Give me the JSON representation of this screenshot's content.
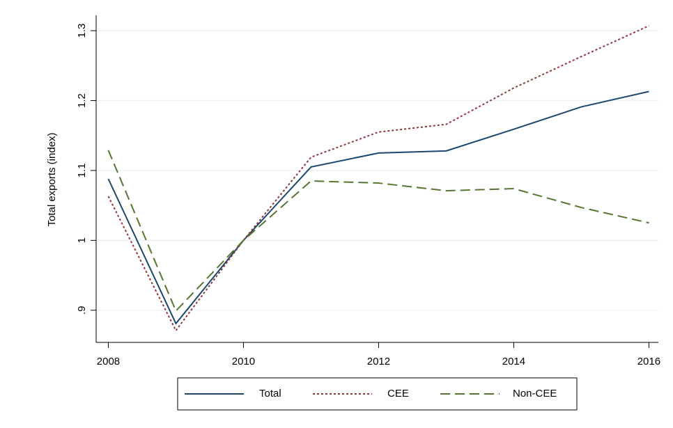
{
  "chart_data": {
    "type": "line",
    "y_label": "Total exports (index)",
    "x": [
      2008,
      2009,
      2010,
      2011,
      2012,
      2013,
      2014,
      2015,
      2016
    ],
    "series": [
      {
        "name": "Total",
        "color": "#1a476f",
        "dash": "none",
        "values": [
          1.088,
          0.881,
          1.0,
          1.105,
          1.125,
          1.128,
          1.159,
          1.191,
          1.213
        ]
      },
      {
        "name": "CEE",
        "color": "#90353b",
        "dash": "3,3",
        "values": [
          1.063,
          0.871,
          1.0,
          1.119,
          1.155,
          1.166,
          1.218,
          1.263,
          1.307
        ]
      },
      {
        "name": "Non-CEE",
        "color": "#55752f",
        "dash": "14,7",
        "values": [
          1.129,
          0.899,
          1.0,
          1.085,
          1.082,
          1.071,
          1.074,
          1.047,
          1.025
        ]
      }
    ],
    "xlim": [
      2007.82,
      2016.14
    ],
    "xticks": [
      2008,
      2010,
      2012,
      2014,
      2016
    ],
    "ylim": [
      0.854,
      1.322
    ],
    "yticks": [
      {
        "value": 0.9,
        "label": ".9"
      },
      1,
      1.1,
      1.2,
      1.3
    ],
    "grid": true
  }
}
